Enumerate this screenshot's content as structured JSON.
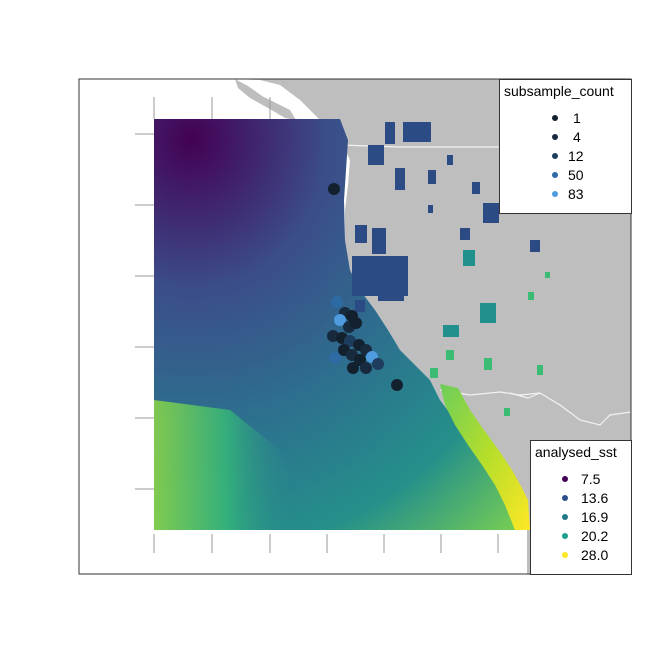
{
  "legend_subsample": {
    "title": "subsample_count",
    "items": [
      {
        "label": "1",
        "color": "#13212f"
      },
      {
        "label": "4",
        "color": "#182a3e"
      },
      {
        "label": "12",
        "color": "#1e3d5e"
      },
      {
        "label": "50",
        "color": "#2e6aa3"
      },
      {
        "label": "83",
        "color": "#4f9be0"
      }
    ]
  },
  "legend_sst": {
    "title": "analysed_sst",
    "items": [
      {
        "label": "7.5",
        "color": "#440154"
      },
      {
        "label": "13.6",
        "color": "#2f4f8b"
      },
      {
        "label": "16.9",
        "color": "#21798b"
      },
      {
        "label": "20.2",
        "color": "#1fa088"
      },
      {
        "label": "28.0",
        "color": "#fde725"
      }
    ]
  },
  "colors": {
    "land": "#bebebe",
    "border_lines": "#f2f2f2",
    "frame": "#333333",
    "tick": "#999999"
  }
}
